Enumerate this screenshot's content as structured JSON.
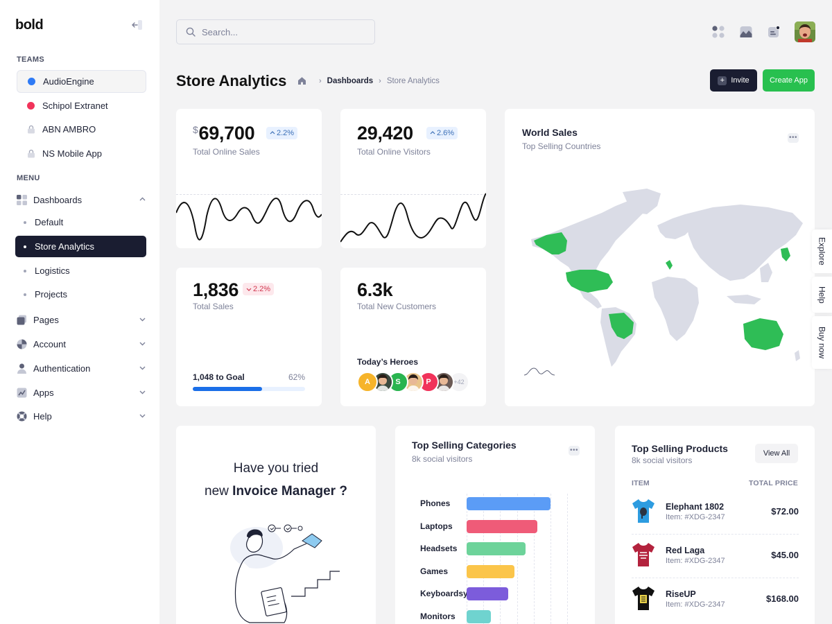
{
  "brand": {
    "logo": "bold"
  },
  "sidebar": {
    "teams_label": "TEAMS",
    "teams": [
      {
        "label": "AudioEngine",
        "color": "#2f7bf5",
        "type": "dot"
      },
      {
        "label": "Schipol Extranet",
        "color": "#f1335a",
        "type": "dot"
      },
      {
        "label": "ABN AMBRO",
        "type": "lock"
      },
      {
        "label": "NS Mobile App",
        "type": "lock"
      }
    ],
    "menu_label": "MENU",
    "dashboards": {
      "label": "Dashboards",
      "items": [
        "Default",
        "Store Analytics",
        "Logistics",
        "Projects"
      ],
      "active": "Store Analytics"
    },
    "menu": [
      {
        "label": "Pages",
        "icon": "pages-icon"
      },
      {
        "label": "Account",
        "icon": "account-icon"
      },
      {
        "label": "Authentication",
        "icon": "user-icon"
      },
      {
        "label": "Apps",
        "icon": "apps-icon"
      },
      {
        "label": "Help",
        "icon": "lifebuoy-icon"
      }
    ]
  },
  "header": {
    "search_placeholder": "Search...",
    "icons": [
      "grid-icon",
      "chart-icon",
      "notification-icon"
    ]
  },
  "toolbar": {
    "title": "Store Analytics",
    "breadcrumb": [
      "Dashboards",
      "Store Analytics"
    ],
    "invite_label": "Invite",
    "create_label": "Create App"
  },
  "stats": {
    "online_sales": {
      "currency": "$",
      "value": "69,700",
      "change": "2.2%",
      "label": "Total Online Sales"
    },
    "online_visitors": {
      "value": "29,420",
      "change": "2.6%",
      "label": "Total Online Visitors"
    },
    "total_sales": {
      "value": "1,836",
      "change": "2.2%",
      "label": "Total Sales",
      "goal_label": "1,048 to Goal",
      "goal_percent": "62%",
      "goal_fraction": 0.62
    },
    "new_customers": {
      "value": "6.3k",
      "label": "Total New Customers",
      "heroes_label": "Today’s Heroes",
      "heroes": [
        {
          "initial": "A",
          "color": "#f6b42a"
        },
        {
          "initial": "",
          "color": "#3b4a3f"
        },
        {
          "initial": "S",
          "color": "#29b44f"
        },
        {
          "initial": "",
          "color": "#e9c48a"
        },
        {
          "initial": "P",
          "color": "#f1335a"
        },
        {
          "initial": "",
          "color": "#6b5a55"
        }
      ],
      "more": "+42"
    }
  },
  "world_sales": {
    "title": "World Sales",
    "subtitle": "Top Selling Countries"
  },
  "side_tabs": [
    "Explore",
    "Help",
    "Buy now"
  ],
  "promo": {
    "line1": "Have you tried",
    "line2_prefix": "new ",
    "line2_bold": "Invoice Manager ?"
  },
  "categories": {
    "title": "Top Selling Categories",
    "subtitle": "8k social visitors",
    "chart_data": {
      "type": "bar",
      "orientation": "horizontal",
      "categories": [
        "Phones",
        "Laptops",
        "Headsets",
        "Games",
        "Keyboardsy",
        "Monitors"
      ],
      "values": [
        15,
        12.7,
        10.6,
        8.6,
        7.5,
        4.3
      ],
      "colors": [
        "#5b9cf6",
        "#ef5b78",
        "#6dd39a",
        "#fbc54a",
        "#7c5cdb",
        "#6fd3cf"
      ],
      "xlim": [
        0,
        18
      ],
      "grid": true
    }
  },
  "products": {
    "title": "Top Selling Products",
    "subtitle": "8k social visitors",
    "view_all": "View All",
    "col_item": "ITEM",
    "col_price": "TOTAL PRICE",
    "rows": [
      {
        "name": "Elephant 1802",
        "code": "Item: #XDG-2347",
        "price": "$72.00",
        "shirt_color": "#2d9ce0"
      },
      {
        "name": "Red Laga",
        "code": "Item: #XDG-2347",
        "price": "$45.00",
        "shirt_color": "#b3223d"
      },
      {
        "name": "RiseUP",
        "code": "Item: #XDG-2347",
        "price": "$168.00",
        "shirt_color": "#111111"
      }
    ]
  }
}
